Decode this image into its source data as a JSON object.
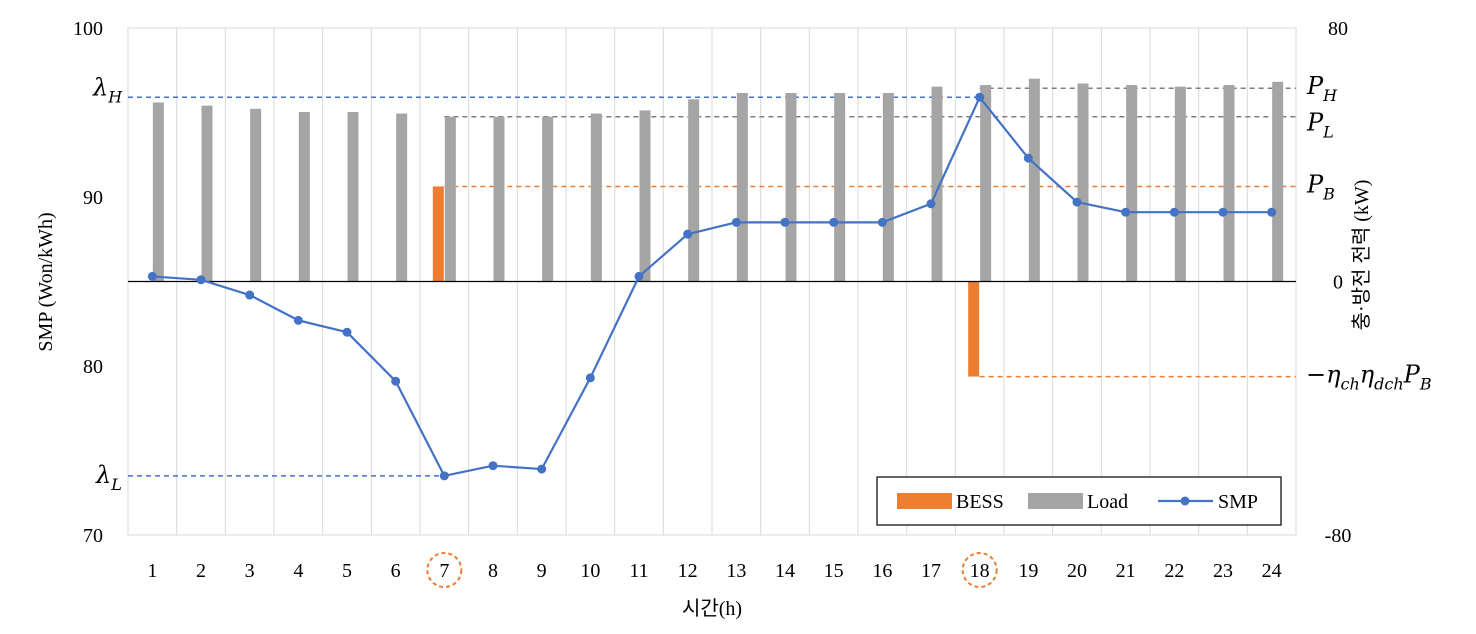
{
  "chart_data": {
    "type": "bar+line",
    "xlabel": "시간(h)",
    "ylabel_left": "SMP (Won/kWh)",
    "ylabel_right": "충·방전 전력 (kW)",
    "categories": [
      "1",
      "2",
      "3",
      "4",
      "5",
      "6",
      "7",
      "8",
      "9",
      "10",
      "11",
      "12",
      "13",
      "14",
      "15",
      "16",
      "17",
      "18",
      "19",
      "20",
      "21",
      "22",
      "23",
      "24"
    ],
    "highlighted_categories": [
      "7",
      "18"
    ],
    "left_axis": {
      "min": 70,
      "max": 100,
      "ticks": [
        "70",
        "80",
        "90",
        "100"
      ]
    },
    "right_axis": {
      "min": -80,
      "max": 80,
      "ticks": [
        "-80",
        "0",
        "80"
      ]
    },
    "series": [
      {
        "name": "BESS",
        "type": "bar",
        "axis": "right",
        "color": "#ed7d31",
        "values": [
          0,
          0,
          0,
          0,
          0,
          0,
          30,
          0,
          0,
          0,
          0,
          0,
          0,
          0,
          0,
          0,
          0,
          -30,
          0,
          0,
          0,
          0,
          0,
          0
        ]
      },
      {
        "name": "Load",
        "type": "bar",
        "axis": "right",
        "color": "#a5a5a5",
        "values": [
          56.5,
          55.5,
          54.5,
          53.5,
          53.5,
          53,
          52,
          52,
          52,
          53,
          54,
          57.5,
          59.5,
          59.5,
          59.5,
          59.5,
          61.5,
          62,
          64,
          62.5,
          62,
          61.5,
          62,
          63
        ]
      },
      {
        "name": "SMP",
        "type": "line",
        "axis": "left",
        "color": "#4472c4",
        "values": [
          85.3,
          85.1,
          84.2,
          82.7,
          82,
          79.1,
          73.5,
          74.1,
          73.9,
          79.3,
          85.3,
          87.8,
          88.5,
          88.5,
          88.5,
          88.5,
          89.6,
          95.9,
          92.3,
          89.7,
          89.1,
          89.1,
          89.1,
          89.1
        ]
      }
    ],
    "reference_lines": {
      "lambda_h": {
        "value": 95.9,
        "axis": "left",
        "from": "1",
        "to": "18",
        "color": "#4472c4",
        "label": "λ",
        "sub": "H"
      },
      "lambda_l": {
        "value": 73.5,
        "axis": "left",
        "from": "1",
        "to": "7",
        "color": "#4472c4",
        "label": "λ",
        "sub": "L"
      },
      "p_h": {
        "value": 61,
        "axis": "right",
        "from": "18",
        "to": "24",
        "color": "#7f7f7f",
        "label": "P",
        "sub": "H"
      },
      "p_l": {
        "value": 52,
        "axis": "right",
        "from": "7",
        "to": "24",
        "color": "#7f7f7f",
        "label": "P",
        "sub": "L"
      },
      "p_b": {
        "value": 30,
        "axis": "right",
        "from": "7",
        "to": "24",
        "color": "#ed7d31",
        "label": "P",
        "sub": "B"
      },
      "neg_pb": {
        "value": -30,
        "axis": "right",
        "from": "18",
        "to": "24",
        "color": "#ed7d31",
        "label_parts": [
          "−η",
          "ch",
          "η",
          "dch",
          "P",
          "B"
        ]
      }
    },
    "legend": {
      "position": "bottom-right",
      "entries": [
        "BESS",
        "Load",
        "SMP"
      ]
    },
    "grid": {
      "vertical": true,
      "horizontal": false
    }
  }
}
